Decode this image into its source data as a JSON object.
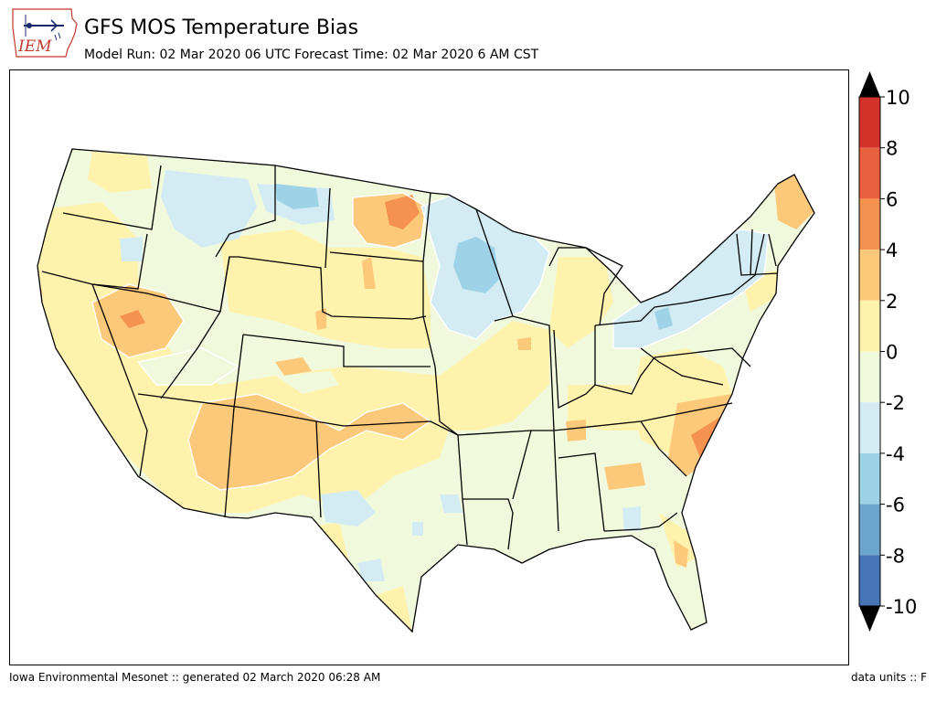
{
  "header": {
    "logo_text": "IEM",
    "title": "GFS MOS Temperature Bias",
    "subtitle": "Model Run: 02 Mar 2020 06 UTC Forecast Time: 02 Mar 2020 6 AM CST"
  },
  "footer": {
    "left": "Iowa Environmental Mesonet :: generated 02 March 2020 06:28 AM",
    "right": "data units :: F"
  },
  "legend": {
    "ticks": [
      "10",
      "8",
      "6",
      "4",
      "2",
      "0",
      "-2",
      "-4",
      "-6",
      "-8",
      "-10"
    ],
    "levels": [
      {
        "min": 8,
        "max": 10,
        "color": "#d3322b"
      },
      {
        "min": 6,
        "max": 8,
        "color": "#e9603f"
      },
      {
        "min": 4,
        "max": 6,
        "color": "#f5924f"
      },
      {
        "min": 2,
        "max": 4,
        "color": "#fcc879"
      },
      {
        "min": 0,
        "max": 2,
        "color": "#fff2ad"
      },
      {
        "min": -2,
        "max": 0,
        "color": "#f1f9dc"
      },
      {
        "min": -4,
        "max": -2,
        "color": "#d3ecf4"
      },
      {
        "min": -6,
        "max": -4,
        "color": "#9ed2e6"
      },
      {
        "min": -8,
        "max": -6,
        "color": "#6ca6cf"
      },
      {
        "min": -10,
        "max": -8,
        "color": "#4575b4"
      }
    ],
    "extend_colors": {
      "above": "#000000",
      "below": "#000000"
    }
  }
}
